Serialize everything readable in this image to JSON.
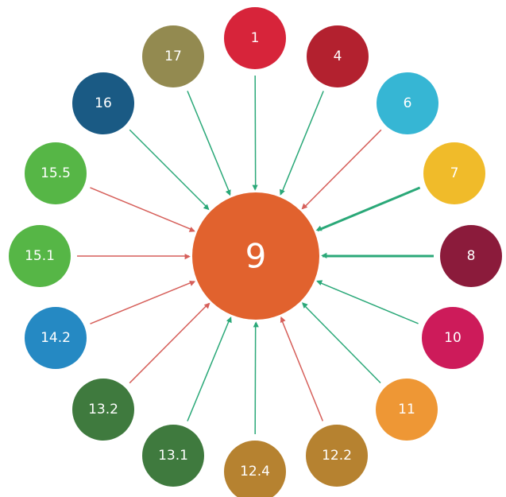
{
  "center": {
    "label": "9"
  },
  "nodes": [
    {
      "label": "1"
    },
    {
      "label": "4"
    },
    {
      "label": "6"
    },
    {
      "label": "7"
    },
    {
      "label": "8"
    },
    {
      "label": "10"
    },
    {
      "label": "11"
    },
    {
      "label": "12.2"
    },
    {
      "label": "12.4"
    },
    {
      "label": "13.1"
    },
    {
      "label": "13.2"
    },
    {
      "label": "14.2"
    },
    {
      "label": "15.1"
    },
    {
      "label": "15.5"
    },
    {
      "label": "16"
    },
    {
      "label": "17"
    }
  ]
}
